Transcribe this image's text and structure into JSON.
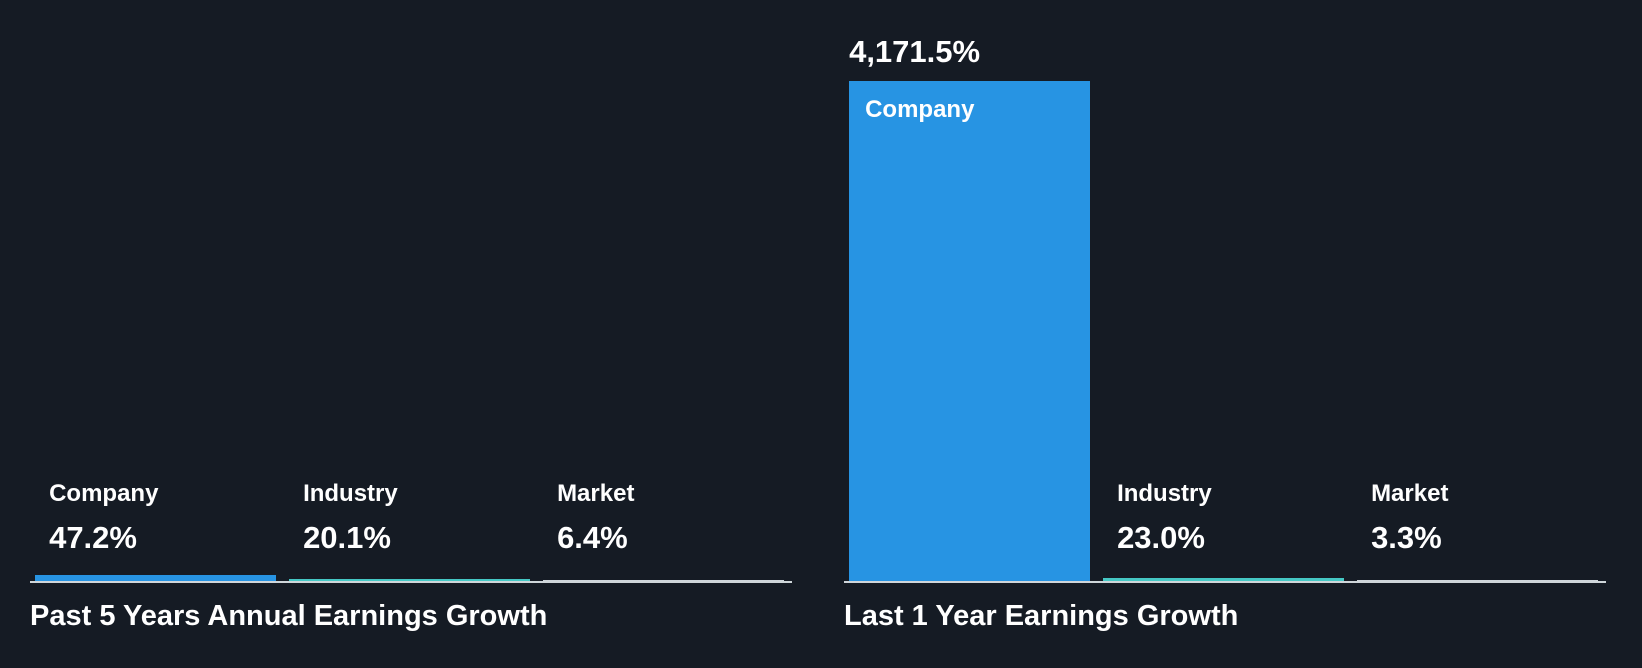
{
  "theme": {
    "background": "#151B24",
    "text_color": "#FFFFFF",
    "axis_color": "#CFD6DA",
    "series_colors": [
      "#2794E3",
      "#45C8C5",
      "#CFD6DB"
    ]
  },
  "chart_data": [
    {
      "type": "bar",
      "title": "Past 5 Years Annual Earnings Growth",
      "categories": [
        "Company",
        "Industry",
        "Market"
      ],
      "values": [
        47.2,
        20.1,
        6.4
      ],
      "value_labels": [
        "47.2%",
        "20.1%",
        "6.4%"
      ],
      "unit": "%",
      "ylim": [
        0,
        4171.5
      ],
      "grid": false,
      "legend": "none"
    },
    {
      "type": "bar",
      "title": "Last 1 Year Earnings Growth",
      "categories": [
        "Company",
        "Industry",
        "Market"
      ],
      "values": [
        4171.5,
        23.0,
        3.3
      ],
      "value_labels": [
        "4,171.5%",
        "23.0%",
        "3.3%"
      ],
      "unit": "%",
      "ylim": [
        0,
        4171.5
      ],
      "grid": false,
      "legend": "none"
    }
  ]
}
